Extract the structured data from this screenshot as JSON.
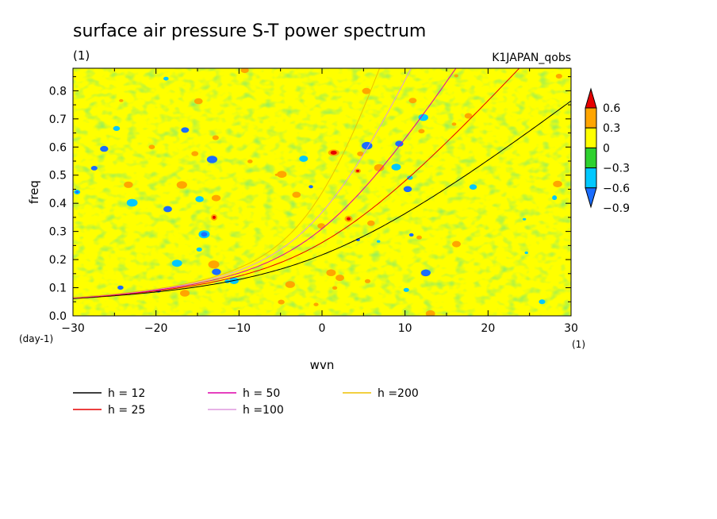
{
  "chart_data": {
    "type": "heatmap",
    "title": "surface air pressure S-T power spectrum",
    "subtitle_left": "(1)",
    "subtitle_right": "K1JAPAN_qobs",
    "xlabel": "wvn",
    "ylabel": "freq",
    "x_unit": "(1)",
    "y_unit": "(day-1)",
    "xlim": [
      -30,
      30
    ],
    "ylim": [
      0,
      0.88
    ],
    "x_ticks": [
      -30,
      -20,
      -10,
      0,
      10,
      20,
      30
    ],
    "x_tick_labels": [
      "−30",
      "−20",
      "−10",
      "0",
      "10",
      "20",
      "30"
    ],
    "y_ticks": [
      0,
      0.1,
      0.2,
      0.3,
      0.4,
      0.5,
      0.6,
      0.7,
      0.8
    ],
    "y_tick_labels": [
      "0.0",
      "0.1",
      "0.2",
      "0.3",
      "0.4",
      "0.5",
      "0.6",
      "0.7",
      "0.8"
    ],
    "colorbar": {
      "levels": [
        -0.9,
        -0.6,
        -0.3,
        0,
        0.3,
        0.6
      ],
      "labels": [
        "−0.9",
        "−0.6",
        "−0.3",
        "0",
        "0.3",
        "0.6"
      ],
      "colors": [
        "#1a6dff",
        "#00c8ff",
        "#2ed12e",
        "#ffff00",
        "#ffa500",
        "#e60000"
      ]
    },
    "field_colors": {
      "yellow": "#ffff00",
      "green": "#2ed12e",
      "orange": "#ffa500",
      "cyan": "#00c8ff",
      "blue": "#1a6dff",
      "red": "#e60000"
    },
    "series": [
      {
        "name": "h = 12",
        "h": 12,
        "color": "#000000"
      },
      {
        "name": "h = 25",
        "h": 25,
        "color": "#e60000"
      },
      {
        "name": "h = 50",
        "h": 50,
        "color": "#dd00aa"
      },
      {
        "name": "h =100",
        "h": 100,
        "color": "#dd99dd"
      },
      {
        "name": "h =200",
        "h": 200,
        "color": "#eec000"
      }
    ],
    "legend_position": "bottom"
  }
}
